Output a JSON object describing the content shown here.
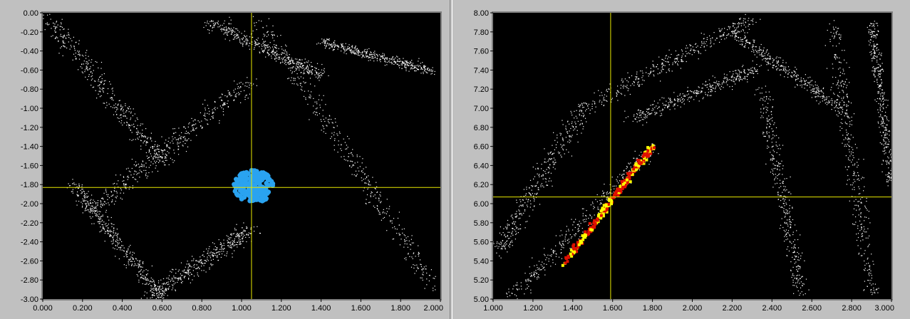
{
  "colors": {
    "plot_background": "#000000",
    "window_background": "#c0c0c0",
    "background_points": "#ffffff",
    "cursor": "#e8e800",
    "cluster_left": "#2aa3f0",
    "cluster_right_core": "#ffff00",
    "cluster_right_edge": "#e01000"
  },
  "chart_data": [
    {
      "type": "scatter",
      "title": "",
      "xlabel": "",
      "ylabel": "",
      "xlim": [
        0.0,
        2.0
      ],
      "ylim": [
        -3.0,
        0.0
      ],
      "x_ticks": [
        "0.000",
        "0.200",
        "0.400",
        "0.600",
        "0.800",
        "1.000",
        "1.200",
        "1.400",
        "1.600",
        "1.800",
        "2.000"
      ],
      "y_ticks": [
        "0.00",
        "-0.20",
        "-0.40",
        "-0.60",
        "-0.80",
        "-1.00",
        "-1.20",
        "-1.40",
        "-1.60",
        "-1.80",
        "-2.00",
        "-2.20",
        "-2.40",
        "-2.60",
        "-2.80",
        "-3.00"
      ],
      "grid": false,
      "cursor": {
        "x": 1.05,
        "y": -1.83
      },
      "series": [
        {
          "marker": "dot",
          "approx_count": 3000,
          "bands": [
            {
              "x": [
                0.02,
                0.62
              ],
              "y": [
                -0.05,
                -1.6
              ],
              "width": 0.16
            },
            {
              "x": [
                0.15,
                0.6
              ],
              "y": [
                -1.8,
                -2.98
              ],
              "width": 0.12
            },
            {
              "x": [
                0.25,
                1.05
              ],
              "y": [
                -2.05,
                -0.7
              ],
              "width": 0.18
            },
            {
              "x": [
                0.85,
                1.4
              ],
              "y": [
                -0.1,
                -0.65
              ],
              "width": 0.14
            },
            {
              "x": [
                0.55,
                1.05
              ],
              "y": [
                -2.95,
                -2.25
              ],
              "width": 0.16
            },
            {
              "x": [
                1.1,
                1.98
              ],
              "y": [
                -0.1,
                -2.9
              ],
              "width": 0.15
            },
            {
              "x": [
                1.4,
                1.95
              ],
              "y": [
                -0.3,
                -0.6
              ],
              "width": 0.1
            }
          ]
        },
        {
          "marker": "circle",
          "color": "#2aa3f0",
          "center": [
            1.06,
            -1.82
          ],
          "spread": [
            0.1,
            0.17
          ],
          "approx_count": 170
        }
      ]
    },
    {
      "type": "scatter",
      "title": "",
      "xlabel": "",
      "ylabel": "",
      "xlim": [
        1.0,
        3.0
      ],
      "ylim": [
        5.0,
        8.0
      ],
      "x_ticks": [
        "1.000",
        "1.200",
        "1.400",
        "1.600",
        "1.800",
        "2.000",
        "2.200",
        "2.400",
        "2.600",
        "2.800",
        "3.000"
      ],
      "y_ticks": [
        "8.00",
        "7.80",
        "7.60",
        "7.40",
        "7.20",
        "7.00",
        "6.80",
        "6.60",
        "6.40",
        "6.20",
        "6.00",
        "5.80",
        "5.60",
        "5.40",
        "5.20",
        "5.00"
      ],
      "grid": false,
      "cursor": {
        "x": 1.59,
        "y": 6.07
      },
      "series": [
        {
          "marker": "dot",
          "approx_count": 3000,
          "bands": [
            {
              "x": [
                1.02,
                1.45
              ],
              "y": [
                5.5,
                7.0
              ],
              "width": 0.16
            },
            {
              "x": [
                1.45,
                2.3
              ],
              "y": [
                7.0,
                7.95
              ],
              "width": 0.16
            },
            {
              "x": [
                1.1,
                1.8
              ],
              "y": [
                5.05,
                6.6
              ],
              "width": 0.14
            },
            {
              "x": [
                1.7,
                2.35
              ],
              "y": [
                6.9,
                7.45
              ],
              "width": 0.14
            },
            {
              "x": [
                2.35,
                2.55
              ],
              "y": [
                7.2,
                5.05
              ],
              "width": 0.12
            },
            {
              "x": [
                2.2,
                2.75
              ],
              "y": [
                7.8,
                7.0
              ],
              "width": 0.12
            },
            {
              "x": [
                2.7,
                2.9
              ],
              "y": [
                7.9,
                5.05
              ],
              "width": 0.12
            },
            {
              "x": [
                2.9,
                3.0
              ],
              "y": [
                7.9,
                6.2
              ],
              "width": 0.08
            }
          ]
        },
        {
          "marker": "square",
          "colors": [
            "#ffff00",
            "#e01000"
          ],
          "line": {
            "from": [
              1.35,
              5.36
            ],
            "to": [
              1.8,
              6.6
            ]
          },
          "spread": 0.03,
          "approx_count": 260
        }
      ]
    }
  ]
}
